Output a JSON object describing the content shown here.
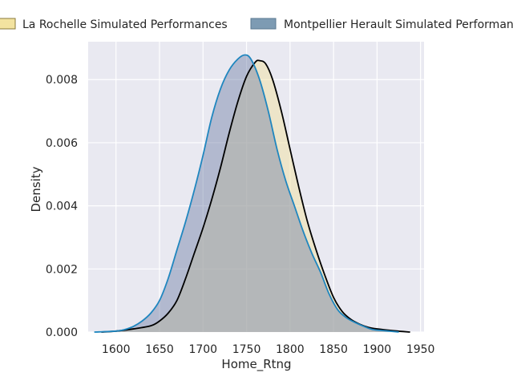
{
  "chart_data": {
    "type": "area",
    "title": "",
    "xlabel": "Home_Rtng",
    "ylabel": "Density",
    "xlim": [
      1568,
      1954
    ],
    "ylim": [
      0,
      0.0092
    ],
    "x_ticks": [
      1600,
      1650,
      1700,
      1750,
      1800,
      1850,
      1900,
      1950
    ],
    "y_ticks": [
      0.0,
      0.002,
      0.004,
      0.006,
      0.008
    ],
    "y_tick_labels": [
      "0.000",
      "0.002",
      "0.004",
      "0.006",
      "0.008"
    ],
    "grid": true,
    "legend_position": "top",
    "series": [
      {
        "name": "La Rochelle Simulated Performances",
        "fill_color": "#f0e2a8",
        "fill_opacity": 0.55,
        "line_color": "#000000",
        "swatch_color": "#f3e3a0",
        "swatch_border": "#8a7a3a",
        "points": [
          [
            1583,
            0
          ],
          [
            1600,
            3e-05
          ],
          [
            1620,
            0.0001
          ],
          [
            1640,
            0.0002
          ],
          [
            1650,
            0.00035
          ],
          [
            1660,
            0.0006
          ],
          [
            1670,
            0.001
          ],
          [
            1680,
            0.0017
          ],
          [
            1690,
            0.0025
          ],
          [
            1700,
            0.0033
          ],
          [
            1710,
            0.0042
          ],
          [
            1720,
            0.0052
          ],
          [
            1730,
            0.0063
          ],
          [
            1740,
            0.0073
          ],
          [
            1750,
            0.0081
          ],
          [
            1760,
            0.00855
          ],
          [
            1765,
            0.0086
          ],
          [
            1772,
            0.0085
          ],
          [
            1780,
            0.008
          ],
          [
            1790,
            0.007
          ],
          [
            1800,
            0.0058
          ],
          [
            1810,
            0.0046
          ],
          [
            1820,
            0.0035
          ],
          [
            1830,
            0.0026
          ],
          [
            1840,
            0.0018
          ],
          [
            1850,
            0.0011
          ],
          [
            1860,
            0.00065
          ],
          [
            1870,
            0.0004
          ],
          [
            1880,
            0.00025
          ],
          [
            1890,
            0.00015
          ],
          [
            1900,
            0.0001
          ],
          [
            1920,
            4e-05
          ],
          [
            1938,
            0
          ]
        ]
      },
      {
        "name": "Montpellier Herault Simulated Performances",
        "fill_color": "#6f7fa6",
        "fill_opacity": 0.45,
        "line_color": "#1f86bf",
        "swatch_color": "#7d9bb3",
        "swatch_border": "#5a7890",
        "points": [
          [
            1575,
            0
          ],
          [
            1600,
            3e-05
          ],
          [
            1610,
            8e-05
          ],
          [
            1620,
            0.00018
          ],
          [
            1630,
            0.00035
          ],
          [
            1640,
            0.0006
          ],
          [
            1650,
            0.001
          ],
          [
            1660,
            0.0017
          ],
          [
            1670,
            0.0026
          ],
          [
            1680,
            0.0035
          ],
          [
            1690,
            0.0045
          ],
          [
            1700,
            0.0056
          ],
          [
            1710,
            0.0068
          ],
          [
            1720,
            0.0077
          ],
          [
            1730,
            0.0083
          ],
          [
            1740,
            0.00865
          ],
          [
            1748,
            0.00878
          ],
          [
            1755,
            0.00865
          ],
          [
            1765,
            0.008
          ],
          [
            1775,
            0.007
          ],
          [
            1785,
            0.0058
          ],
          [
            1795,
            0.0048
          ],
          [
            1805,
            0.004
          ],
          [
            1815,
            0.0032
          ],
          [
            1825,
            0.0025
          ],
          [
            1835,
            0.0019
          ],
          [
            1845,
            0.0012
          ],
          [
            1855,
            0.0007
          ],
          [
            1865,
            0.00045
          ],
          [
            1875,
            0.0003
          ],
          [
            1885,
            0.00018
          ],
          [
            1895,
            8e-05
          ],
          [
            1910,
            4e-05
          ],
          [
            1925,
            0
          ]
        ]
      }
    ]
  }
}
